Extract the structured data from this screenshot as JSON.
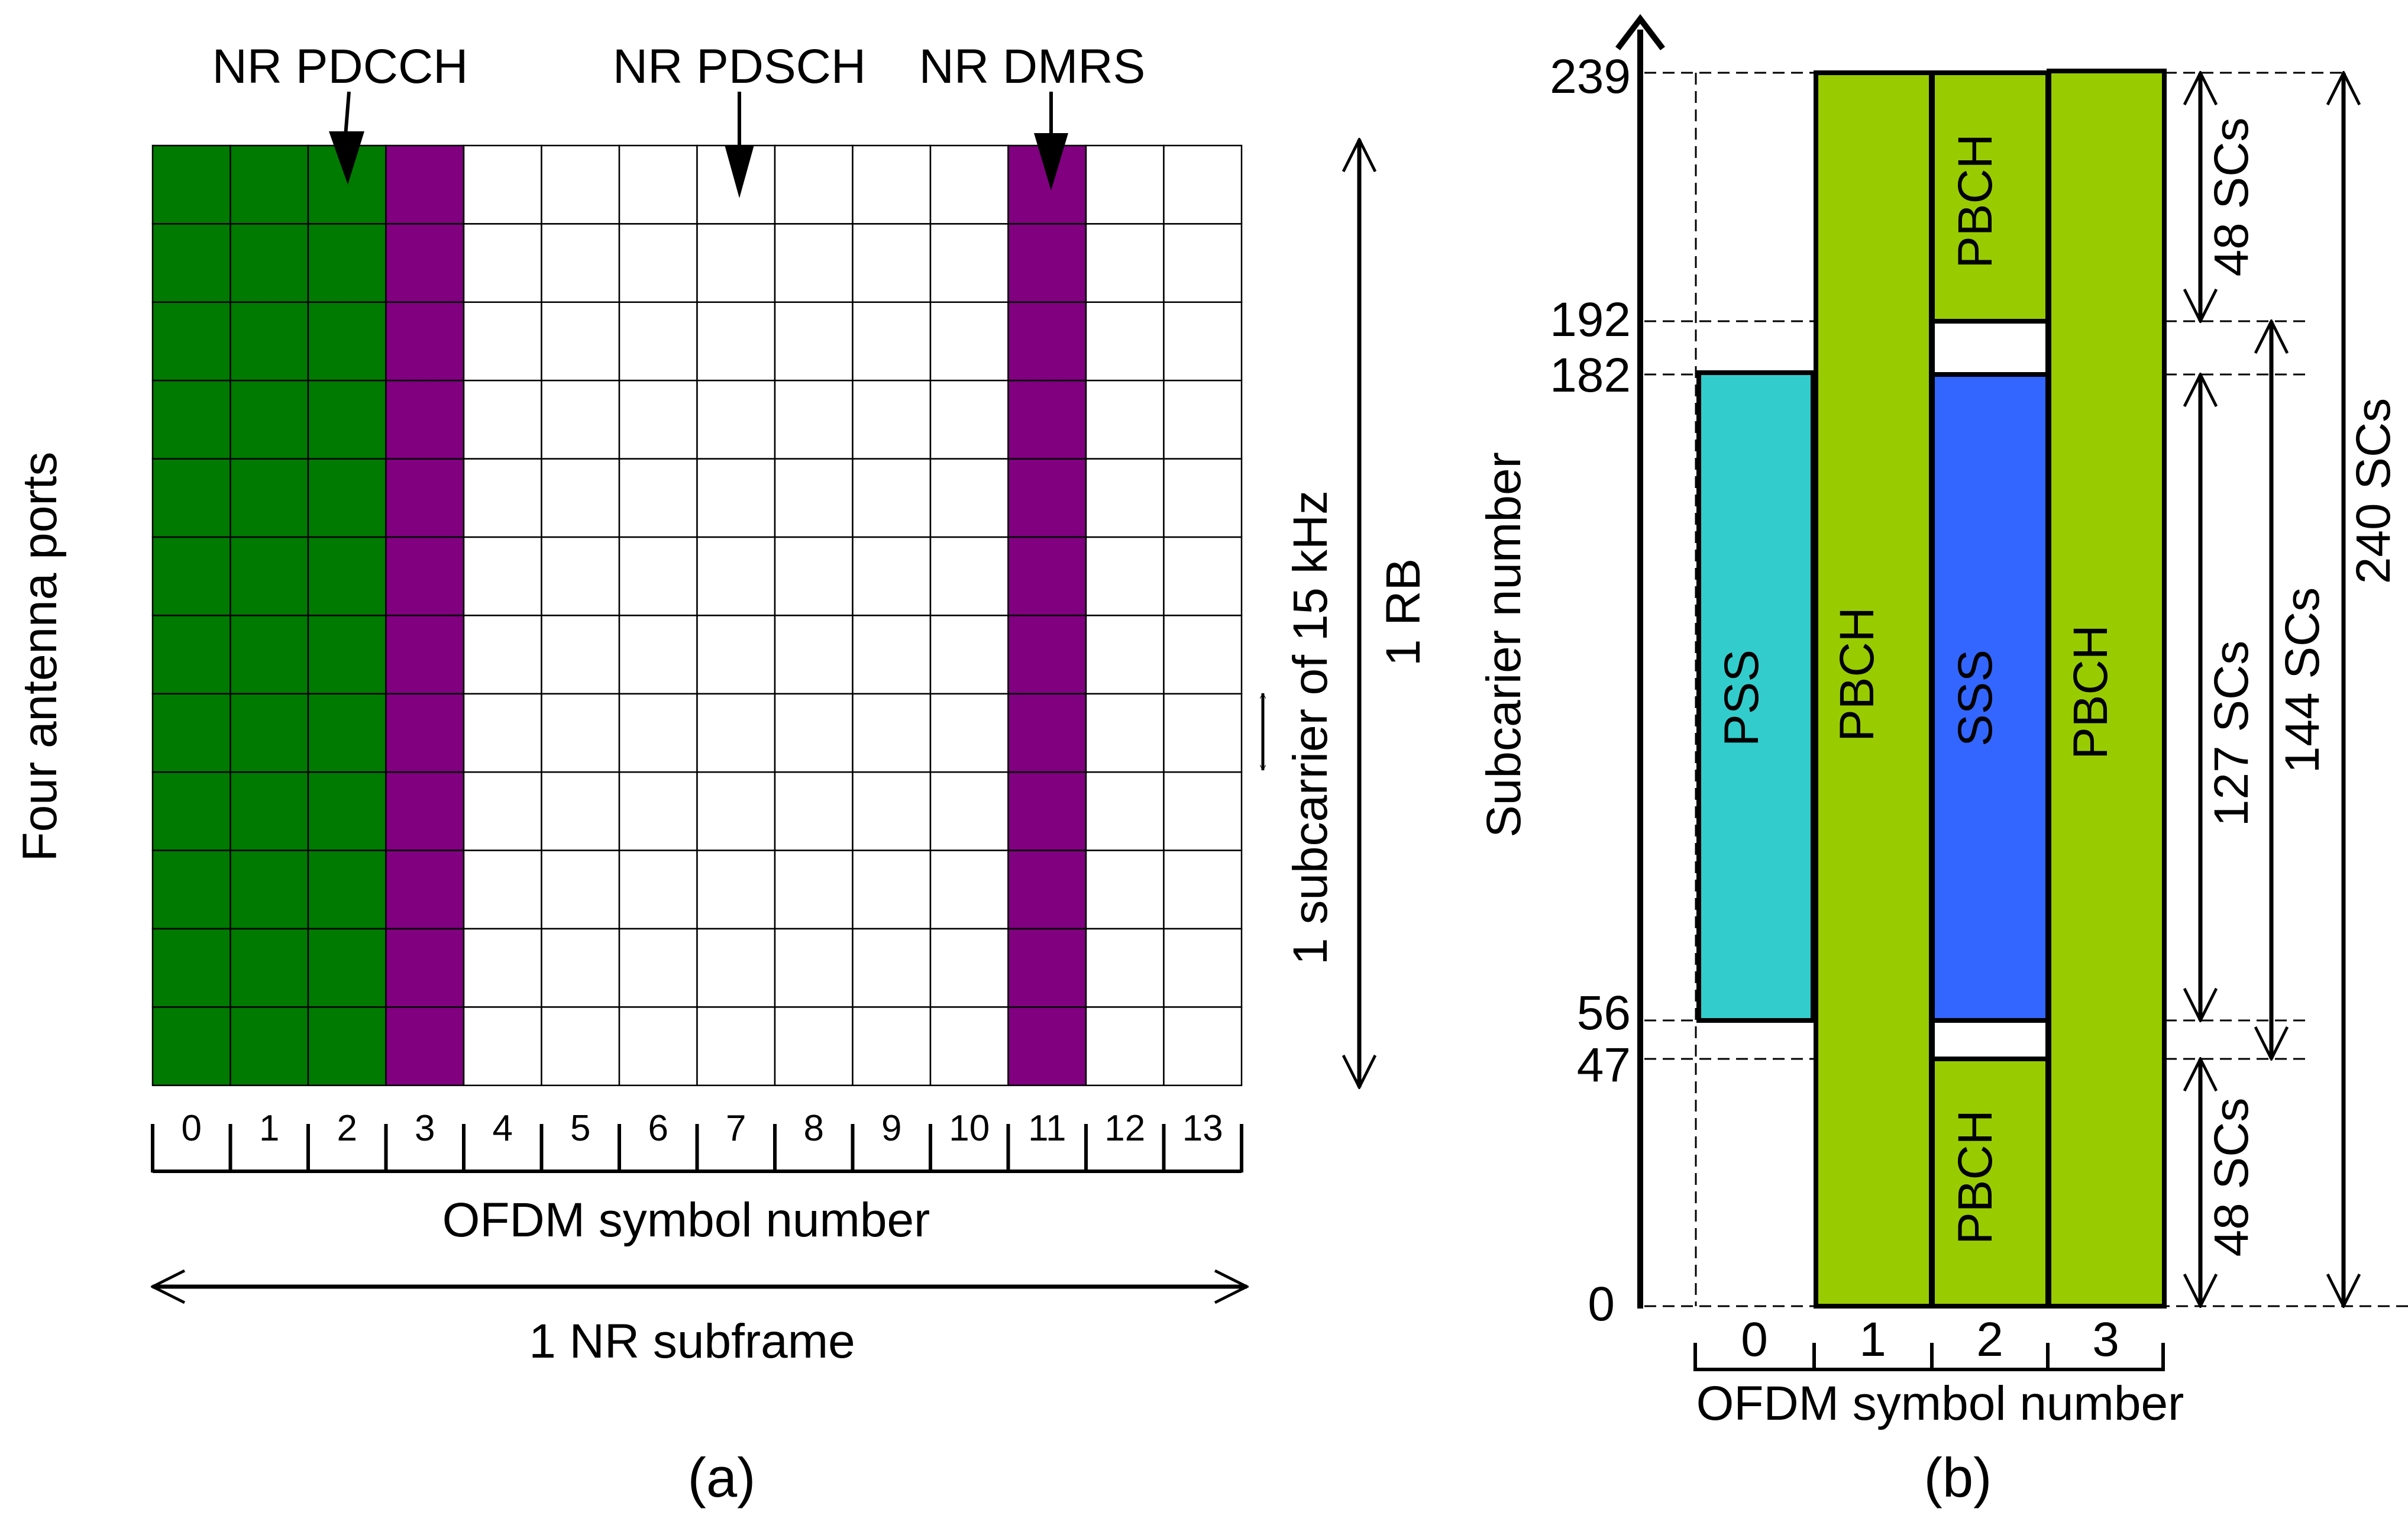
{
  "panel_a": {
    "caption": "(a)",
    "y_label": "Four antenna ports",
    "x_label": "OFDM symbol number",
    "span_label": "1 NR subframe",
    "rb_label": "1 RB",
    "subcarrier_label": "1 subcarrier of 15 kHz",
    "annotations": {
      "pdcch": "NR PDCCH",
      "pdsch": "NR PDSCH",
      "dmrs": "NR DMRS"
    },
    "num_symbols": 14,
    "num_subcarriers": 12,
    "symbol_ticks": [
      "0",
      "1",
      "2",
      "3",
      "4",
      "5",
      "6",
      "7",
      "8",
      "9",
      "10",
      "11",
      "12",
      "13"
    ],
    "pdcch_symbols": [
      0,
      1,
      2
    ],
    "dmrs_symbols": [
      3,
      11
    ],
    "colors": {
      "pdcch": "#007a00",
      "dmrs": "#800080",
      "pdsch": "#ffffff",
      "grid": "#000000"
    }
  },
  "panel_b": {
    "caption": "(b)",
    "y_label": "Subcarier number",
    "x_label": "OFDM symbol number",
    "y_ticks": [
      "239",
      "192",
      "182",
      "56",
      "47",
      "0"
    ],
    "symbol_ticks": [
      "0",
      "1",
      "2",
      "3"
    ],
    "blocks": {
      "pss": "PSS",
      "sss": "SSS",
      "pbch": "PBCH"
    },
    "spans": {
      "sc48_top": "48 SCs",
      "sc48_bottom": "48 SCs",
      "sc127": "127 SCs",
      "sc144": "144 SCs",
      "sc240": "240 SCs"
    },
    "colors": {
      "pbch": "#99cc00",
      "pss": "#33cccc",
      "sss": "#3366ff"
    }
  }
}
